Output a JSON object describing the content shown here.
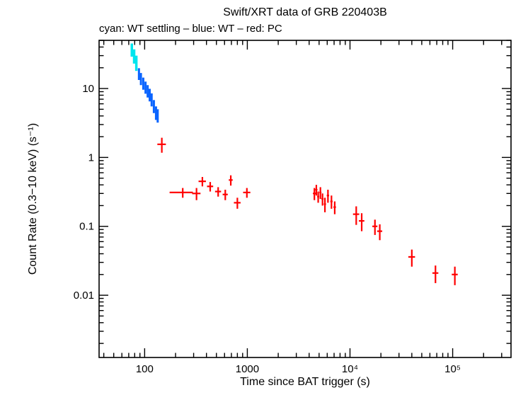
{
  "title": "Swift/XRT data of GRB 220403B",
  "subtitle": "cyan: WT settling – blue: WT – red: PC",
  "legend": [
    {
      "color_name": "cyan",
      "hex": "#00e5ee",
      "label": "WT settling"
    },
    {
      "color_name": "blue",
      "hex": "#0a64ff",
      "label": "WT"
    },
    {
      "color_name": "red",
      "hex": "#ff0000",
      "label": "PC"
    }
  ],
  "chart_data": {
    "type": "scatter",
    "subtype": "error-bar-cross-light-curve",
    "title": "Swift/XRT data of GRB 220403B",
    "xlabel": "Time since BAT trigger (s)",
    "ylabel": "Count Rate (0.3−10 keV) (s⁻¹)",
    "xscale": "log",
    "yscale": "log",
    "xlim": [
      36,
      370000
    ],
    "ylim": [
      0.00125,
      50
    ],
    "grid": false,
    "xticks": [
      {
        "value": 100,
        "label": "100"
      },
      {
        "value": 1000,
        "label": "1000"
      },
      {
        "value": 10000,
        "label": "10⁴"
      },
      {
        "value": 100000,
        "label": "10⁵"
      }
    ],
    "yticks": [
      {
        "value": 0.01,
        "label": "0.01"
      },
      {
        "value": 0.1,
        "label": "0.1"
      },
      {
        "value": 1,
        "label": "1"
      },
      {
        "value": 10,
        "label": "10"
      }
    ],
    "point_format": "[time_s, count_rate, time_err, rate_err]",
    "series": [
      {
        "name": "WT settling",
        "color": "#00e5ee",
        "points": [
          [
            75,
            37,
            1.5,
            8
          ],
          [
            79,
            30,
            1.5,
            7
          ],
          [
            83,
            24,
            1.5,
            6
          ]
        ]
      },
      {
        "name": "WT",
        "color": "#0a64ff",
        "points": [
          [
            88,
            16.5,
            1.5,
            3.2
          ],
          [
            92,
            14.0,
            1.5,
            2.8
          ],
          [
            97,
            12.0,
            1.5,
            2.4
          ],
          [
            102,
            10.5,
            1.5,
            2.1
          ],
          [
            107,
            9.3,
            1.5,
            1.9
          ],
          [
            112,
            8.2,
            1.5,
            1.7
          ],
          [
            117,
            7.0,
            1.5,
            1.5
          ],
          [
            123,
            5.6,
            1.5,
            1.2
          ],
          [
            129,
            4.5,
            1.5,
            1.0
          ],
          [
            134,
            4.1,
            1.5,
            0.9
          ]
        ]
      },
      {
        "name": "PC",
        "color": "#ff0000",
        "points": [
          [
            147,
            1.55,
            14,
            0.38
          ],
          [
            235,
            0.31,
            60,
            0.05
          ],
          [
            320,
            0.3,
            30,
            0.06
          ],
          [
            365,
            0.45,
            30,
            0.07
          ],
          [
            435,
            0.38,
            30,
            0.06
          ],
          [
            520,
            0.32,
            35,
            0.05
          ],
          [
            610,
            0.29,
            35,
            0.05
          ],
          [
            690,
            0.47,
            30,
            0.08
          ],
          [
            800,
            0.22,
            60,
            0.04
          ],
          [
            990,
            0.31,
            80,
            0.05
          ],
          [
            4500,
            0.3,
            150,
            0.06
          ],
          [
            4700,
            0.34,
            120,
            0.06
          ],
          [
            4900,
            0.27,
            110,
            0.05
          ],
          [
            5150,
            0.31,
            120,
            0.06
          ],
          [
            5400,
            0.25,
            130,
            0.05
          ],
          [
            5700,
            0.21,
            140,
            0.05
          ],
          [
            6100,
            0.28,
            160,
            0.06
          ],
          [
            6600,
            0.23,
            170,
            0.05
          ],
          [
            7100,
            0.19,
            200,
            0.04
          ],
          [
            11500,
            0.15,
            800,
            0.045
          ],
          [
            13000,
            0.12,
            800,
            0.035
          ],
          [
            17500,
            0.1,
            1000,
            0.025
          ],
          [
            19500,
            0.085,
            1100,
            0.022
          ],
          [
            40000,
            0.036,
            3000,
            0.01
          ],
          [
            68000,
            0.021,
            4500,
            0.006
          ],
          [
            105000,
            0.02,
            7000,
            0.006
          ]
        ]
      }
    ]
  }
}
